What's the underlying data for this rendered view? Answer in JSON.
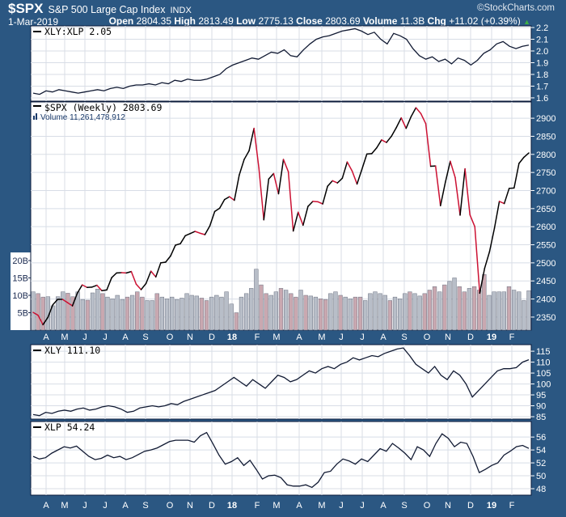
{
  "header": {
    "symbol": "$SPX",
    "name": "S&P 500 Large Cap Index",
    "exchange": "INDX",
    "brand": "©StockCharts.com",
    "date": "1-Mar-2019",
    "open_label": "Open",
    "open": "2804.35",
    "high_label": "High",
    "high": "2813.49",
    "low_label": "Low",
    "low": "2775.13",
    "close_label": "Close",
    "close": "2803.69",
    "volume_label": "Volume",
    "volume": "11.3B",
    "chg_label": "Chg",
    "chg": "+11.02 (+0.39%)",
    "chg_icon": "triangle-up"
  },
  "colors": {
    "background": "#2b5782",
    "up": "#000000",
    "down": "#cc1133",
    "bar": "#b8bec8",
    "bar_down": "#c9a8b0",
    "grid": "#d8dde6"
  },
  "chart_data": [
    {
      "type": "line",
      "legend": "XLY:XLP 2.05",
      "ylim": [
        1.572,
        2.214
      ],
      "yticks": [
        "1.6",
        "1.7",
        "1.8",
        "1.9",
        "2.0",
        "2.1",
        "2.2"
      ],
      "values": [
        1.64,
        1.63,
        1.66,
        1.65,
        1.67,
        1.66,
        1.65,
        1.64,
        1.65,
        1.66,
        1.67,
        1.66,
        1.68,
        1.69,
        1.68,
        1.7,
        1.71,
        1.71,
        1.72,
        1.71,
        1.73,
        1.72,
        1.75,
        1.74,
        1.76,
        1.75,
        1.75,
        1.76,
        1.78,
        1.8,
        1.85,
        1.88,
        1.9,
        1.92,
        1.94,
        1.93,
        1.96,
        1.99,
        1.98,
        2.01,
        1.96,
        1.95,
        2.01,
        2.06,
        2.1,
        2.12,
        2.13,
        2.15,
        2.17,
        2.18,
        2.19,
        2.17,
        2.14,
        2.16,
        2.1,
        2.06,
        2.15,
        2.13,
        2.1,
        2.02,
        1.96,
        1.93,
        1.95,
        1.91,
        1.93,
        1.89,
        1.94,
        1.92,
        1.88,
        1.92,
        1.98,
        2.01,
        2.06,
        2.08,
        2.04,
        2.02,
        2.04,
        2.05
      ]
    },
    {
      "type": "line",
      "legend": "$SPX (Weekly) 2803.69",
      "ylim": [
        2314,
        2945
      ],
      "yticks": [
        "2350",
        "2400",
        "2450",
        "2500",
        "2550",
        "2600",
        "2650",
        "2700",
        "2750",
        "2800",
        "2850",
        "2900"
      ],
      "values": [
        2363,
        2355,
        2329,
        2349,
        2384,
        2399,
        2399,
        2390,
        2381,
        2416,
        2439,
        2432,
        2433,
        2438,
        2423,
        2425,
        2459,
        2472,
        2473,
        2472,
        2476,
        2441,
        2426,
        2443,
        2477,
        2461,
        2500,
        2502,
        2519,
        2549,
        2553,
        2575,
        2581,
        2587,
        2582,
        2578,
        2602,
        2642,
        2651,
        2675,
        2683,
        2673,
        2743,
        2786,
        2810,
        2872,
        2762,
        2619,
        2732,
        2747,
        2691,
        2786,
        2752,
        2588,
        2640,
        2604,
        2656,
        2670,
        2669,
        2663,
        2712,
        2727,
        2721,
        2734,
        2779,
        2754,
        2718,
        2759,
        2801,
        2802,
        2818,
        2840,
        2833,
        2850,
        2874,
        2901,
        2872,
        2904,
        2929,
        2913,
        2885,
        2767,
        2768,
        2658,
        2723,
        2781,
        2736,
        2632,
        2760,
        2633,
        2600,
        2416,
        2485,
        2531,
        2596,
        2670,
        2664,
        2706,
        2707,
        2775,
        2792,
        2804
      ]
    },
    {
      "type": "bar",
      "legend": "Volume 11,261,478,912",
      "unit": "B",
      "yticks": [
        "5B",
        "10B",
        "15B",
        "20B"
      ],
      "ytick_values": [
        5,
        10,
        15,
        20
      ],
      "values": [
        11,
        10.5,
        9.5,
        9.6,
        7,
        9.6,
        11,
        10.6,
        9.6,
        11,
        8.8,
        8.6,
        10.7,
        11.8,
        10.5,
        9.5,
        9,
        10,
        8.8,
        9.5,
        10,
        11,
        9.5,
        8.5,
        8.5,
        10.5,
        9.5,
        9,
        9.5,
        8.8,
        9.2,
        10.5,
        10,
        9.8,
        9.2,
        8.5,
        9.5,
        10,
        9.5,
        11,
        7.5,
        5,
        9.5,
        10.5,
        12,
        17.5,
        13,
        10.5,
        10,
        11,
        12,
        11.5,
        10.5,
        9.5,
        11.5,
        10,
        9.8,
        9.5,
        9,
        8.8,
        10.5,
        11,
        10,
        9.5,
        9,
        9.5,
        9.5,
        8.5,
        10.5,
        11,
        10.5,
        10,
        8.5,
        9.5,
        9,
        10.5,
        11,
        10.5,
        9.8,
        10.5,
        11.5,
        12.5,
        11,
        13,
        14,
        15,
        12.5,
        11,
        12,
        12.5,
        11.5,
        16,
        10,
        11,
        11,
        11,
        12.5,
        11.5,
        11,
        8.5,
        11.3
      ]
    },
    {
      "type": "line",
      "legend": "XLY 111.10",
      "ylim": [
        83.9,
        118
      ],
      "yticks": [
        "85",
        "90",
        "95",
        "100",
        "105",
        "110",
        "115"
      ],
      "values": [
        86,
        85.5,
        87,
        86.5,
        87.5,
        88,
        87.5,
        88.5,
        89,
        88,
        88.5,
        89.5,
        90,
        89.5,
        88.5,
        87,
        87.5,
        89,
        89.5,
        90,
        89.5,
        90,
        91,
        90.5,
        92,
        93,
        94,
        95,
        96,
        97,
        99,
        101,
        103,
        101,
        99,
        102,
        100,
        98,
        101,
        104,
        103,
        101,
        102,
        104,
        106,
        105,
        107,
        108,
        107,
        109,
        110,
        112,
        111,
        112,
        113,
        112.5,
        114,
        115,
        116,
        116.5,
        113,
        109,
        107,
        105,
        108,
        104,
        102,
        106,
        104,
        100,
        94,
        97,
        100,
        103,
        106,
        107,
        107,
        107.5,
        110,
        111.1
      ]
    },
    {
      "type": "line",
      "legend": "XLP 54.24",
      "ylim": [
        47,
        58.4
      ],
      "yticks": [
        "48",
        "50",
        "52",
        "54",
        "56"
      ],
      "values": [
        53,
        52.6,
        52.8,
        53.5,
        54,
        54.5,
        54.3,
        54.6,
        53.8,
        53,
        52.5,
        52.7,
        53.2,
        52.8,
        53,
        52.5,
        52.8,
        53.3,
        53.8,
        54,
        54.3,
        54.8,
        55.3,
        55.5,
        55.5,
        55.5,
        55.2,
        56.2,
        56.7,
        55,
        53.2,
        51.8,
        52.2,
        52.8,
        51.6,
        52.4,
        51,
        49.5,
        50,
        50.1,
        49.7,
        48.6,
        48.4,
        48.4,
        48.6,
        48.2,
        49,
        50.5,
        50.7,
        51.8,
        52.6,
        52.3,
        51.8,
        52.6,
        52.2,
        53.2,
        54.2,
        53.8,
        55,
        54.3,
        53.5,
        52.5,
        54.5,
        54,
        53,
        55,
        56.5,
        55.8,
        54.5,
        55.2,
        55,
        53,
        50.5,
        51,
        51.6,
        52,
        53.2,
        53.8,
        54.5,
        54.7,
        54.24
      ]
    }
  ],
  "x_axis": {
    "months": [
      "A",
      "M",
      "J",
      "J",
      "A",
      "S",
      "O",
      "N",
      "D",
      "18",
      "F",
      "M",
      "A",
      "M",
      "J",
      "J",
      "A",
      "S",
      "O",
      "N",
      "D",
      "19",
      "F"
    ],
    "bold": [
      "18",
      "19"
    ]
  }
}
